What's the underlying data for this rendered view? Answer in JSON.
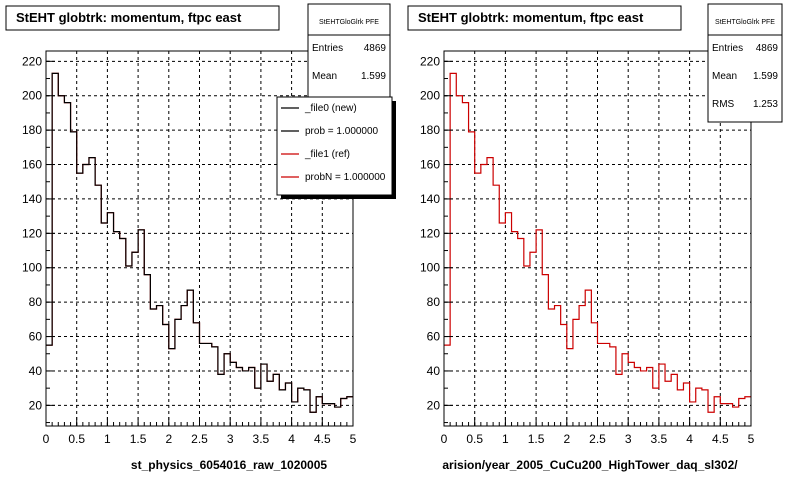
{
  "colors": {
    "ref": "#cc0000",
    "new": "#000000",
    "frame": "#000000",
    "grid": "#000000"
  },
  "legend_entries": [
    "_file0 (new)",
    "prob = 1.000000",
    "_file1 (ref)",
    "probN = 1.000000"
  ],
  "chart_data": [
    {
      "type": "line",
      "title": "StEHT globtrk: momentum, ftpc east",
      "xlabel": "st_physics_6054016_raw_1020005",
      "ylabel": "",
      "xlim": [
        0,
        5
      ],
      "ylim": [
        8,
        226
      ],
      "xticks": [
        "0",
        "0.5",
        "1",
        "1.5",
        "2",
        "2.5",
        "3",
        "3.5",
        "4",
        "4.5",
        "5"
      ],
      "yticks": [
        "20",
        "40",
        "60",
        "80",
        "100",
        "120",
        "140",
        "160",
        "180",
        "200",
        "220"
      ],
      "grid": true,
      "legend": "top-right",
      "stats": {
        "title": "StEHTGloGlrk PFE",
        "rows": [
          [
            "Entries",
            "4869"
          ],
          [
            "Mean",
            "1.599"
          ]
        ]
      },
      "series": [
        {
          "color": "ref",
          "bin_width": 0.1,
          "values": [
            55,
            213,
            200,
            196,
            179,
            155,
            160,
            164,
            148,
            126,
            132,
            121,
            117,
            101,
            109,
            122,
            96,
            76,
            78,
            67,
            53,
            70,
            78,
            87,
            68,
            56,
            56,
            54,
            38,
            50,
            45,
            42,
            40,
            42,
            30,
            44,
            34,
            38,
            29,
            33,
            22,
            30,
            29,
            16,
            25,
            21,
            21,
            19,
            24,
            25
          ]
        },
        {
          "color": "new",
          "bin_width": 0.1,
          "values": [
            55,
            213,
            200,
            196,
            179,
            155,
            160,
            164,
            148,
            126,
            132,
            121,
            117,
            101,
            109,
            122,
            96,
            76,
            78,
            67,
            53,
            70,
            78,
            87,
            68,
            56,
            56,
            54,
            38,
            50,
            45,
            42,
            40,
            42,
            30,
            44,
            34,
            38,
            29,
            33,
            22,
            30,
            29,
            16,
            25,
            21,
            21,
            19,
            24,
            25
          ]
        }
      ]
    },
    {
      "type": "line",
      "title": "StEHT globtrk: momentum, ftpc east",
      "xlabel": "arision/year_2005_CuCu200_HighTower_daq_sl302/",
      "ylabel": "",
      "xlim": [
        0,
        5
      ],
      "ylim": [
        8,
        226
      ],
      "xticks": [
        "0",
        "0.5",
        "1",
        "1.5",
        "2",
        "2.5",
        "3",
        "3.5",
        "4",
        "4.5",
        "5"
      ],
      "yticks": [
        "20",
        "40",
        "60",
        "80",
        "100",
        "120",
        "140",
        "160",
        "180",
        "200",
        "220"
      ],
      "grid": true,
      "stats": {
        "title": "StEHTGloGlrk PFE",
        "rows": [
          [
            "Entries",
            "4869"
          ],
          [
            "Mean",
            "1.599"
          ],
          [
            "RMS",
            "1.253"
          ]
        ]
      },
      "series": [
        {
          "color": "ref",
          "bin_width": 0.1,
          "values": [
            55,
            213,
            200,
            196,
            179,
            155,
            160,
            164,
            148,
            126,
            132,
            121,
            117,
            101,
            109,
            122,
            96,
            76,
            78,
            67,
            53,
            70,
            78,
            87,
            68,
            56,
            56,
            54,
            38,
            50,
            45,
            42,
            40,
            42,
            30,
            44,
            34,
            38,
            29,
            33,
            22,
            30,
            29,
            16,
            25,
            21,
            21,
            19,
            24,
            25
          ]
        }
      ]
    }
  ]
}
